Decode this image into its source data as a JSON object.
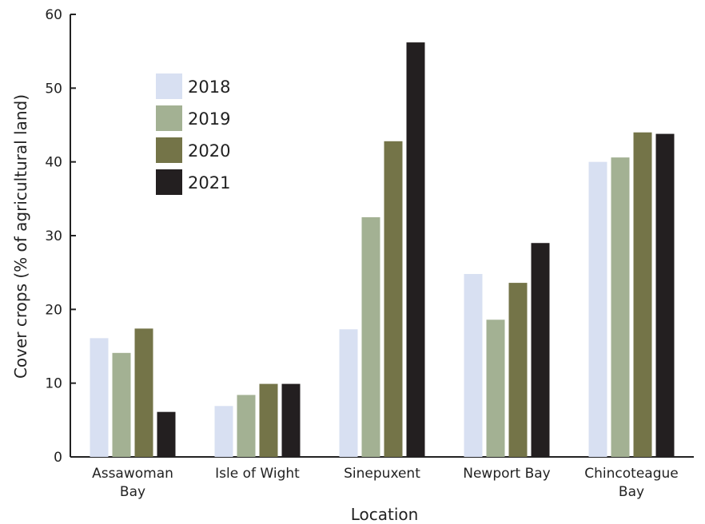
{
  "chart_data": {
    "type": "bar",
    "xlabel": "Location",
    "ylabel": "Cover crops (% of agricultural land)",
    "ylim": [
      0,
      60
    ],
    "yticks": [
      0,
      10,
      20,
      30,
      40,
      50,
      60
    ],
    "categories": [
      [
        "Assawoman",
        "Bay"
      ],
      [
        "Isle of Wight"
      ],
      [
        "Sinepuxent"
      ],
      [
        "Newport Bay"
      ],
      [
        "Chincoteague",
        "Bay"
      ]
    ],
    "series": [
      {
        "name": "2018",
        "color": "#d8e0f2",
        "values": [
          16.1,
          6.9,
          17.3,
          24.8,
          40.0
        ]
      },
      {
        "name": "2019",
        "color": "#a3b193",
        "values": [
          14.1,
          8.4,
          32.5,
          18.6,
          40.6
        ]
      },
      {
        "name": "2020",
        "color": "#747448",
        "values": [
          17.4,
          9.9,
          42.8,
          23.6,
          44.0
        ]
      },
      {
        "name": "2021",
        "color": "#231f20",
        "values": [
          6.1,
          9.9,
          56.2,
          29.0,
          43.8
        ]
      }
    ],
    "legend_position": "top-left",
    "grid": false
  }
}
